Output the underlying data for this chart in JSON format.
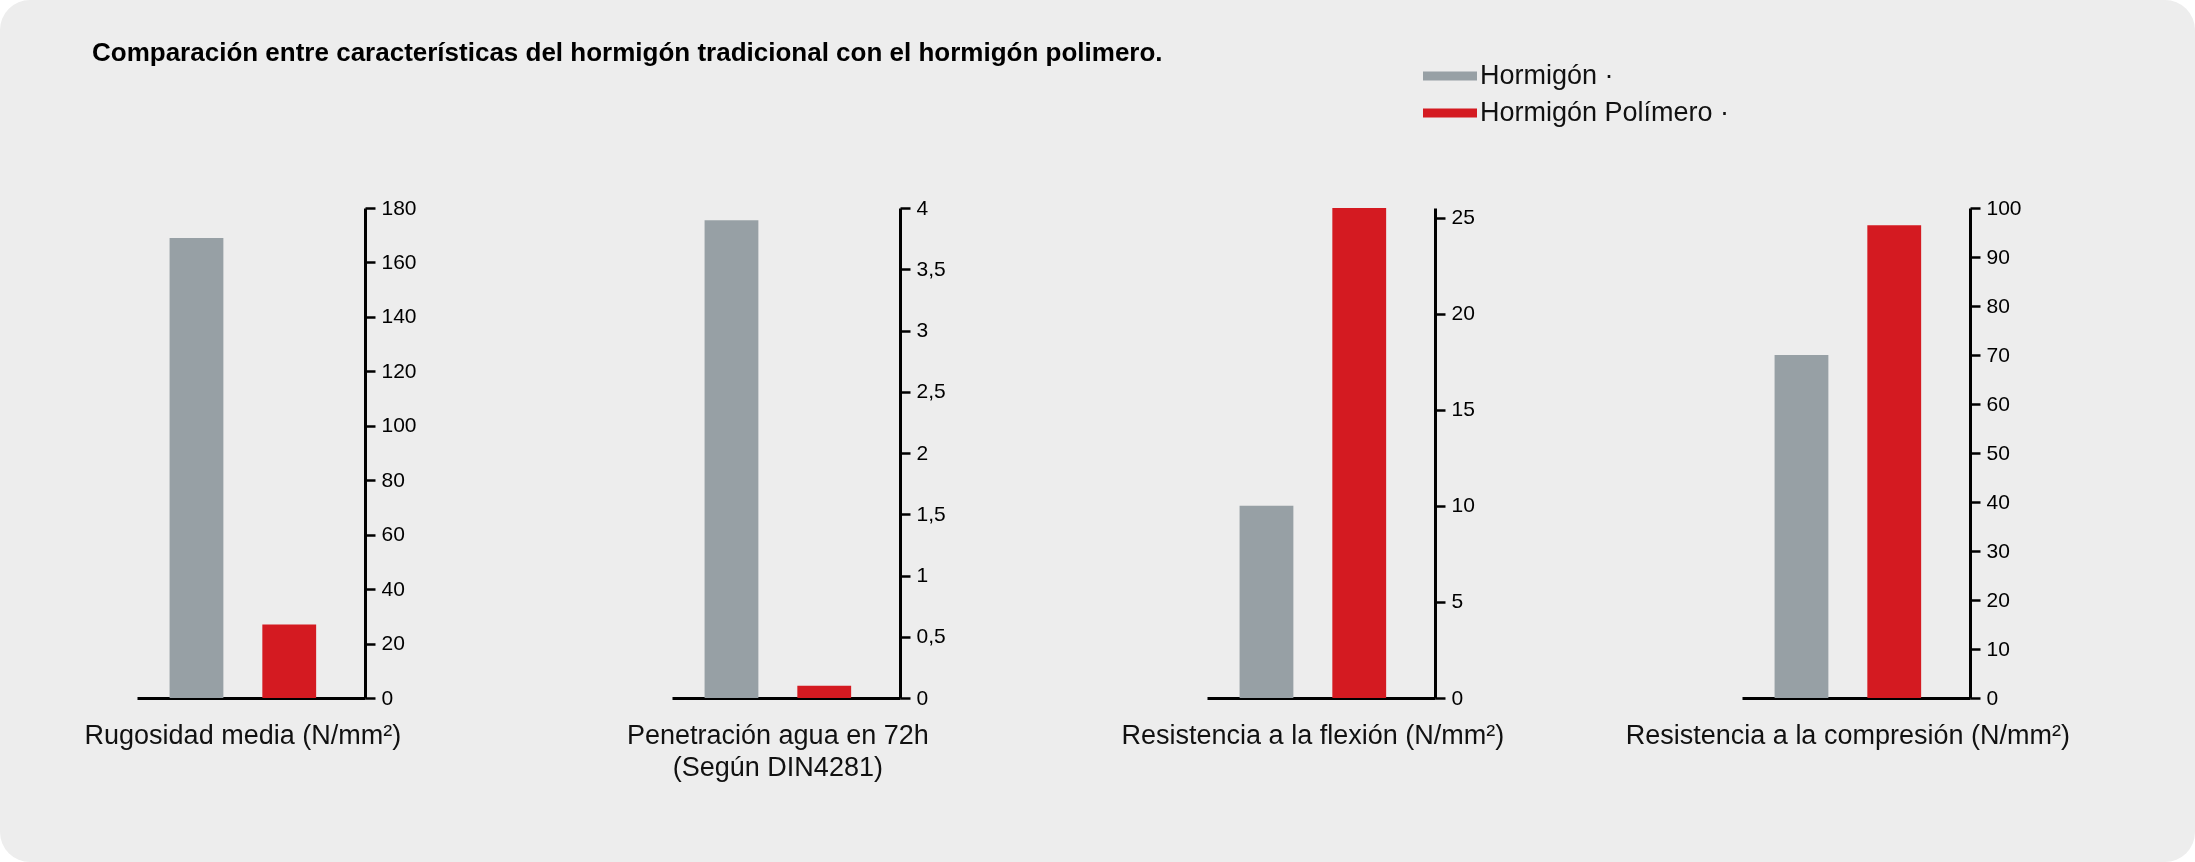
{
  "chart_data": [
    {
      "type": "bar",
      "title": "Comparación entre características del hormigón tradicional con el  hormigón polimero.",
      "categories": [
        "Rugosidad media (N/mm²)"
      ],
      "legend": "top right",
      "series": [
        {
          "name": "Hormigón ·",
          "color": "#97a0a5",
          "values": [
            169
          ]
        },
        {
          "name": "Hormigón Polímero ·",
          "color": "#d41a21",
          "values": [
            27
          ]
        }
      ],
      "ylim": [
        0,
        180
      ],
      "yticks": [
        0,
        20,
        40,
        60,
        80,
        100,
        120,
        140,
        160,
        180
      ]
    },
    {
      "type": "bar",
      "categories": [
        "Penetración agua en 72h\n(Según DIN4281)"
      ],
      "series": [
        {
          "color": "#97a0a5",
          "values": [
            3.9
          ]
        },
        {
          "color": "#d41a21",
          "values": [
            0.1
          ]
        }
      ],
      "ylim": [
        0,
        4
      ],
      "yticks": [
        0,
        {
          "value": 0.5,
          "label": "0,5"
        },
        1,
        {
          "value": 1.5,
          "label": "1,5"
        },
        2,
        {
          "value": 2.5,
          "label": "2,5"
        },
        3,
        {
          "value": 3.5,
          "label": "3,5"
        },
        4
      ]
    },
    {
      "type": "bar",
      "categories": [
        "Resistencia a la flexión (N/mm²)"
      ],
      "series": [
        {
          "color": "#97a0a5",
          "values": [
            10
          ]
        },
        {
          "color": "#d41a21",
          "values": [
            25.5
          ]
        }
      ],
      "ylim": [
        0,
        25.5
      ],
      "yticks": [
        0,
        5,
        10,
        15,
        20,
        25
      ]
    },
    {
      "type": "bar",
      "categories": [
        "Resistencia a la compresión (N/mm²)"
      ],
      "series": [
        {
          "color": "#97a0a5",
          "values": [
            70
          ]
        },
        {
          "color": "#d41a21",
          "values": [
            96.5
          ]
        }
      ],
      "ylim": [
        0,
        100
      ],
      "yticks": [
        0,
        10,
        20,
        30,
        40,
        50,
        60,
        70,
        80,
        90,
        100
      ]
    }
  ]
}
